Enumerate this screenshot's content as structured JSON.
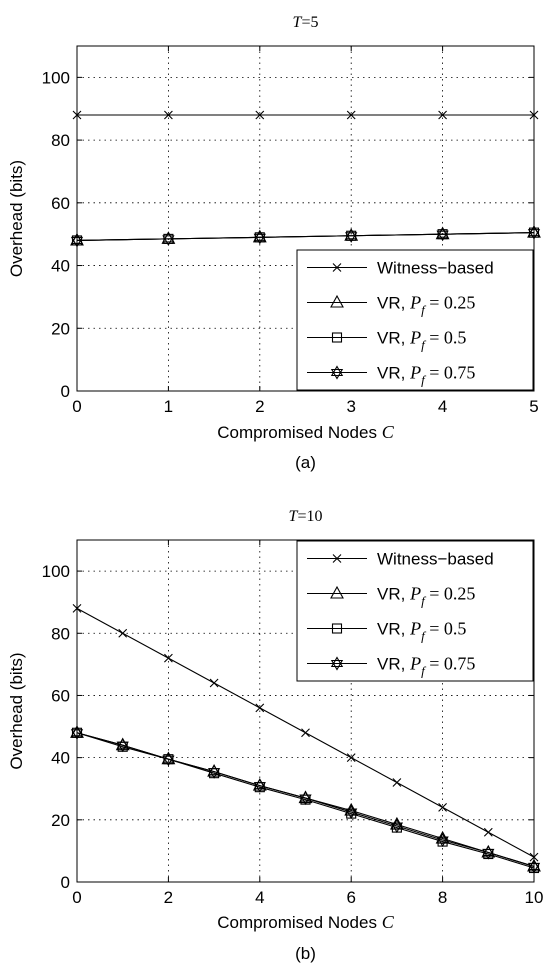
{
  "chart_data": [
    {
      "type": "line",
      "title_var": "T",
      "title_value": "=5",
      "xlabel_text": "Compromised Nodes ",
      "xlabel_var": "C",
      "ylabel": "Overhead (bits)",
      "caption": "(a)",
      "xlim": [
        0,
        5
      ],
      "ylim": [
        0,
        110
      ],
      "xticks": [
        0,
        1,
        2,
        3,
        4,
        5
      ],
      "yticks": [
        0,
        20,
        40,
        60,
        80,
        100
      ],
      "grid": true,
      "legend_position": "lower-right",
      "series": [
        {
          "label_text": "Witness−based",
          "label_sub": "",
          "label_val": "",
          "marker": "x",
          "x": [
            0,
            1,
            2,
            3,
            4,
            5
          ],
          "y": [
            88,
            88,
            88,
            88,
            88,
            88
          ]
        },
        {
          "label_text": "VR, ",
          "label_sub": "f",
          "label_val": " = 0.25",
          "marker": "triangle",
          "x": [
            0,
            1,
            2,
            3,
            4,
            5
          ],
          "y": [
            48,
            48.5,
            49,
            49.5,
            50,
            50.5
          ]
        },
        {
          "label_text": "VR, ",
          "label_sub": "f",
          "label_val": " = 0.5",
          "marker": "square",
          "x": [
            0,
            1,
            2,
            3,
            4,
            5
          ],
          "y": [
            48,
            48.5,
            49,
            49.5,
            50,
            50.5
          ]
        },
        {
          "label_text": "VR, ",
          "label_sub": "f",
          "label_val": " = 0.75",
          "marker": "star",
          "x": [
            0,
            1,
            2,
            3,
            4,
            5
          ],
          "y": [
            48,
            48.5,
            49,
            49.5,
            50,
            50.5
          ]
        }
      ]
    },
    {
      "type": "line",
      "title_var": "T",
      "title_value": "=10",
      "xlabel_text": "Compromised Nodes ",
      "xlabel_var": "C",
      "ylabel": "Overhead (bits)",
      "caption": "(b)",
      "xlim": [
        0,
        10
      ],
      "ylim": [
        0,
        110
      ],
      "xticks": [
        0,
        2,
        4,
        6,
        8,
        10
      ],
      "yticks": [
        0,
        20,
        40,
        60,
        80,
        100
      ],
      "grid": true,
      "legend_position": "top-right",
      "series": [
        {
          "label_text": "Witness−based",
          "label_sub": "",
          "label_val": "",
          "marker": "x",
          "x": [
            0,
            1,
            2,
            3,
            4,
            5,
            6,
            7,
            8,
            9,
            10
          ],
          "y": [
            88,
            80,
            72,
            64,
            56,
            48,
            40,
            32,
            24,
            16,
            8
          ]
        },
        {
          "label_text": "VR, ",
          "label_sub": "f",
          "label_val": " = 0.25",
          "marker": "triangle",
          "x": [
            0,
            1,
            2,
            3,
            4,
            5,
            6,
            7,
            8,
            9,
            10
          ],
          "y": [
            48,
            44,
            39.5,
            35.5,
            31,
            27,
            23,
            18.5,
            14,
            9.5,
            5
          ]
        },
        {
          "label_text": "VR, ",
          "label_sub": "f",
          "label_val": " = 0.5",
          "marker": "square",
          "x": [
            0,
            1,
            2,
            3,
            4,
            5,
            6,
            7,
            8,
            9,
            10
          ],
          "y": [
            48,
            43.5,
            39.5,
            35,
            30.5,
            26.5,
            22,
            17.5,
            13,
            9,
            4.5
          ]
        },
        {
          "label_text": "VR, ",
          "label_sub": "f",
          "label_val": " = 0.75",
          "marker": "star",
          "x": [
            0,
            1,
            2,
            3,
            4,
            5,
            6,
            7,
            8,
            9,
            10
          ],
          "y": [
            48,
            44,
            39.5,
            35.5,
            31,
            27,
            22.5,
            18,
            13.5,
            9.5,
            5
          ]
        }
      ]
    }
  ]
}
